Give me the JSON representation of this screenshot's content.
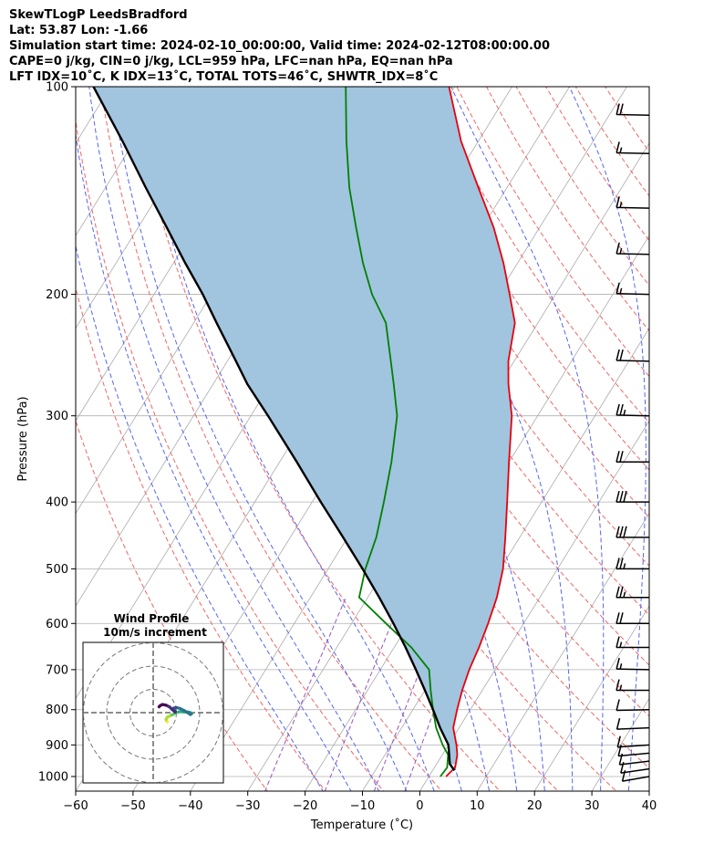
{
  "header": {
    "line1": "SkewTLogP LeedsBradford",
    "line2": "Lat: 53.87   Lon: -1.66",
    "line3": "Simulation start time: 2024-02-10_00:00:00, Valid time: 2024-02-12T08:00:00.00",
    "line4": "CAPE=0 j/kg, CIN=0 j/kg, LCL=959 hPa, LFC=nan hPa, EQ=nan hPa",
    "line5": "LFT IDX=10˚C, K IDX=13˚C, TOTAL TOTS=46˚C, SHWTR_IDX=8˚C"
  },
  "chart_data": {
    "type": "line",
    "title": "SkewTLogP LeedsBradford",
    "xlabel": "Temperature (˚C)",
    "ylabel": "Pressure (hPa)",
    "xlim": [
      -60,
      40
    ],
    "ylim": [
      1050,
      100
    ],
    "y_scale": "log",
    "x_ticks": [
      -60,
      -50,
      -40,
      -30,
      -20,
      -10,
      0,
      10,
      20,
      30,
      40
    ],
    "x_tick_labels": [
      "−60",
      "−50",
      "−40",
      "−30",
      "−20",
      "−10",
      "0",
      "10",
      "20",
      "30",
      "40"
    ],
    "y_ticks": [
      100,
      200,
      300,
      400,
      500,
      600,
      700,
      800,
      900,
      1000
    ],
    "y_tick_labels": [
      "100",
      "200",
      "300",
      "400",
      "500",
      "600",
      "700",
      "800",
      "900",
      "1000"
    ],
    "grid": true,
    "colors": {
      "temperature": "#e8000b",
      "dewpoint": "#008000",
      "parcel": "#000000",
      "cin_fill": "#a1c4df",
      "dry_adiabat": "#ee6666",
      "moist_adiabat": "#5566ee",
      "mixing_ratio": "#9955bb",
      "isotherm": "#aaaaaa",
      "wind_barb": "#000000"
    },
    "series": [
      {
        "role": "temperature",
        "points": [
          [
            3.0,
            1000
          ],
          [
            3.6,
            970
          ],
          [
            2.6,
            930
          ],
          [
            1.4,
            900
          ],
          [
            -1.0,
            850
          ],
          [
            -2.3,
            800
          ],
          [
            -3.5,
            750
          ],
          [
            -4.5,
            700
          ],
          [
            -5.2,
            650
          ],
          [
            -6.2,
            600
          ],
          [
            -7.5,
            550
          ],
          [
            -9.5,
            500
          ],
          [
            -12.5,
            450
          ],
          [
            -16.0,
            400
          ],
          [
            -20.0,
            350
          ],
          [
            -24.5,
            300
          ],
          [
            -28.5,
            270
          ],
          [
            -31.0,
            250
          ],
          [
            -34.0,
            220
          ],
          [
            -38.0,
            200
          ],
          [
            -42.5,
            180
          ],
          [
            -48.0,
            160
          ],
          [
            -55.0,
            140
          ],
          [
            -63.0,
            120
          ],
          [
            -71.0,
            100
          ]
        ]
      },
      {
        "role": "dewpoint",
        "points": [
          [
            2.0,
            1000
          ],
          [
            2.2,
            970
          ],
          [
            1.0,
            930
          ],
          [
            -1.0,
            900
          ],
          [
            -4.0,
            850
          ],
          [
            -6.5,
            800
          ],
          [
            -9.0,
            750
          ],
          [
            -11.5,
            700
          ],
          [
            -17.0,
            650
          ],
          [
            -24.0,
            600
          ],
          [
            -31.5,
            550
          ],
          [
            -33.5,
            500
          ],
          [
            -35.0,
            450
          ],
          [
            -37.5,
            400
          ],
          [
            -40.5,
            350
          ],
          [
            -44.5,
            300
          ],
          [
            -48.5,
            270
          ],
          [
            -51.5,
            250
          ],
          [
            -56.5,
            220
          ],
          [
            -62.0,
            200
          ],
          [
            -67.0,
            180
          ],
          [
            -72.0,
            160
          ],
          [
            -77.5,
            140
          ],
          [
            -83.0,
            120
          ],
          [
            -89.0,
            100
          ]
        ]
      },
      {
        "role": "parcel",
        "points": [
          [
            3.8,
            980
          ],
          [
            2.3,
            959
          ],
          [
            0.0,
            900
          ],
          [
            -3.3,
            850
          ],
          [
            -6.5,
            800
          ],
          [
            -10.0,
            750
          ],
          [
            -13.8,
            700
          ],
          [
            -18.0,
            650
          ],
          [
            -22.7,
            600
          ],
          [
            -28.0,
            550
          ],
          [
            -34.0,
            500
          ],
          [
            -40.8,
            450
          ],
          [
            -48.5,
            400
          ],
          [
            -57.0,
            350
          ],
          [
            -67.0,
            300
          ],
          [
            -74.0,
            270
          ],
          [
            -78.5,
            250
          ],
          [
            -86.0,
            220
          ],
          [
            -91.5,
            200
          ],
          [
            -98.0,
            180
          ],
          [
            -105.0,
            160
          ],
          [
            -113.0,
            140
          ],
          [
            -122.0,
            120
          ],
          [
            -133.0,
            100
          ]
        ]
      }
    ],
    "wind_barbs": {
      "pressures": [
        1000,
        975,
        950,
        925,
        900,
        850,
        800,
        750,
        700,
        650,
        600,
        550,
        500,
        450,
        400,
        350,
        300,
        250,
        200,
        175,
        150,
        125,
        110
      ],
      "speeds_kt": [
        10,
        10,
        10,
        10,
        10,
        10,
        10,
        15,
        15,
        15,
        20,
        25,
        25,
        30,
        30,
        20,
        25,
        20,
        15,
        15,
        15,
        15,
        20
      ],
      "dir_deg": [
        235,
        240,
        245,
        250,
        255,
        260,
        265,
        270,
        275,
        270,
        270,
        270,
        270,
        270,
        270,
        270,
        275,
        275,
        275,
        275,
        275,
        275,
        275
      ]
    },
    "hodograph": {
      "title": "Wind Profile",
      "subtitle": "10m/s increment",
      "colormap": "viridis",
      "points_uv": [
        [
          6,
          -4
        ],
        [
          5.5,
          -3
        ],
        [
          6,
          -2
        ],
        [
          7,
          -1.5
        ],
        [
          8,
          -1
        ],
        [
          9,
          -0.5
        ],
        [
          10,
          0
        ],
        [
          11,
          0.3
        ],
        [
          12,
          0.5
        ],
        [
          13,
          0.4
        ],
        [
          14,
          0.3
        ],
        [
          15,
          0.3
        ],
        [
          16,
          0
        ],
        [
          16.5,
          -0.5
        ],
        [
          16,
          -0.8
        ],
        [
          13.5,
          0.8
        ],
        [
          11.5,
          1.8
        ],
        [
          10,
          2.2
        ],
        [
          9,
          2
        ],
        [
          8.5,
          1.8
        ],
        [
          9.5,
          0.7
        ],
        [
          9.5,
          0.2
        ],
        [
          8,
          1.5
        ],
        [
          7,
          2.5
        ],
        [
          5.5,
          3.2
        ],
        [
          4,
          3.5
        ],
        [
          3,
          3
        ],
        [
          2.5,
          2.5
        ]
      ]
    }
  }
}
